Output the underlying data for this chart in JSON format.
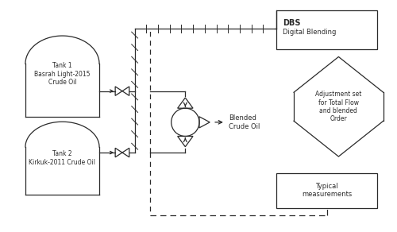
{
  "fig_width": 5.0,
  "fig_height": 2.92,
  "dpi": 100,
  "bg_color": "#ffffff",
  "line_color": "#2a2a2a",
  "tank1_label": "Tank 1\nBasrah Light-2015\nCrude Oil",
  "tank2_label": "Tank 2\nKirkuk-2011 Crude Oil",
  "dbs_bold": "DBS",
  "dbs_sub": "Digital Blending",
  "adjust_label": "Adjustment set\nfor Total Flow\nand blended\nOrder",
  "typical_label": "Typical\nmeasurements",
  "blended_label": "Blended\nCrude Oil"
}
